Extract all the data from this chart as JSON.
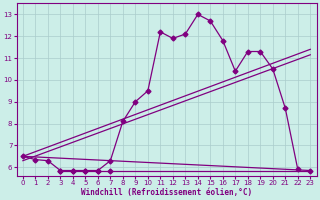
{
  "xlabel": "Windchill (Refroidissement éolien,°C)",
  "background_color": "#cceee8",
  "grid_color": "#aacccc",
  "line_color": "#800080",
  "xlim": [
    -0.5,
    23.5
  ],
  "ylim": [
    5.6,
    13.5
  ],
  "xticks": [
    0,
    1,
    2,
    3,
    4,
    5,
    6,
    7,
    8,
    9,
    10,
    11,
    12,
    13,
    14,
    15,
    16,
    17,
    18,
    19,
    20,
    21,
    22,
    23
  ],
  "yticks": [
    6,
    7,
    8,
    9,
    10,
    11,
    12,
    13
  ],
  "main_x": [
    0,
    1,
    2,
    3,
    4,
    5,
    6,
    7,
    8,
    9,
    10,
    11,
    12,
    13,
    14,
    15,
    16,
    17,
    18,
    19,
    20,
    21,
    22
  ],
  "main_y": [
    6.5,
    6.35,
    6.3,
    5.85,
    5.85,
    5.85,
    5.85,
    6.3,
    8.1,
    9.0,
    9.5,
    12.2,
    11.9,
    12.1,
    13.0,
    12.7,
    11.8,
    10.4,
    11.3,
    11.3,
    10.5,
    8.7,
    5.9
  ],
  "flat_x": [
    2,
    3,
    4,
    5,
    6,
    7,
    23
  ],
  "flat_y": [
    5.85,
    5.85,
    5.85,
    5.85,
    5.85,
    5.85,
    5.85
  ],
  "trend1_x": [
    0,
    23
  ],
  "trend1_y": [
    6.5,
    11.4
  ],
  "trend2_x": [
    0,
    23
  ],
  "trend2_y": [
    6.3,
    11.15
  ],
  "trend3_x": [
    0,
    23
  ],
  "trend3_y": [
    6.5,
    5.85
  ]
}
